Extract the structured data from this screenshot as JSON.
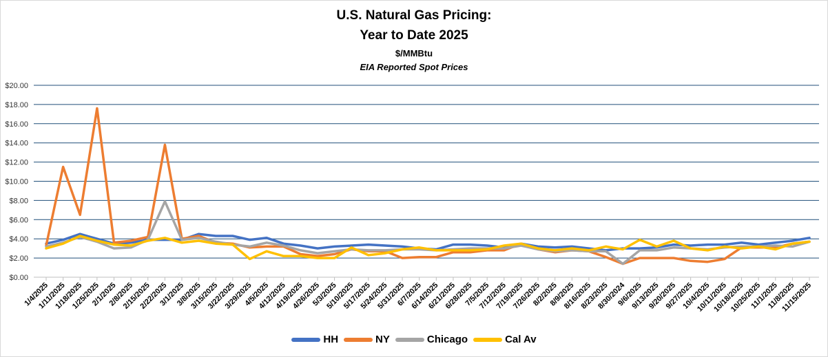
{
  "chart_data": {
    "type": "line",
    "title": "U.S. Natural Gas Pricing:",
    "title_line2": "Year to Date 2025",
    "units": "$/MMBtu",
    "subtitle": "EIA Reported Spot Prices",
    "xlabel": "",
    "ylabel": "",
    "ylim": [
      0,
      20
    ],
    "yticks": [
      "$0.00",
      "$2.00",
      "$4.00",
      "$6.00",
      "$8.00",
      "$10.00",
      "$12.00",
      "$14.00",
      "$16.00",
      "$18.00",
      "$20.00"
    ],
    "grid": true,
    "legend_position": "bottom",
    "categories": [
      "1/4/2025",
      "1/11/2025",
      "1/18/2025",
      "1/25/2025",
      "2/1/2025",
      "2/8/2025",
      "2/15/2025",
      "2/22/2025",
      "3/1/2025",
      "3/8/2025",
      "3/15/2025",
      "3/22/2025",
      "3/29/2025",
      "4/5/2025",
      "4/12/2025",
      "4/19/2025",
      "4/26/2025",
      "5/3/2025",
      "5/10/2025",
      "5/17/2025",
      "5/24/2025",
      "5/31/2025",
      "6/7/2025",
      "6/14/2025",
      "6/21/2025",
      "6/28/2025",
      "7/5/2025",
      "7/12/2025",
      "7/19/2025",
      "7/26/2025",
      "8/2/2025",
      "8/9/2025",
      "8/16/2025",
      "8/23/2025",
      "8/30/2024",
      "9/6/2025",
      "9/13/2025",
      "9/20/2025",
      "9/27/2025",
      "10/4/2025",
      "10/11/2025",
      "10/18/2025",
      "10/25/2025",
      "11/1/2025",
      "11/8/2025",
      "11/15/2025"
    ],
    "series": [
      {
        "name": "HH",
        "color": "#4472C4",
        "values": [
          3.5,
          3.9,
          4.5,
          4.0,
          3.5,
          3.6,
          3.9,
          3.9,
          3.9,
          4.5,
          4.3,
          4.3,
          3.9,
          4.1,
          3.5,
          3.3,
          3.0,
          3.2,
          3.3,
          3.4,
          3.3,
          3.2,
          3.0,
          2.9,
          3.4,
          3.4,
          3.3,
          3.1,
          3.5,
          3.2,
          3.1,
          3.2,
          3.0,
          2.8,
          3.0,
          3.0,
          3.1,
          3.4,
          3.3,
          3.4,
          3.4,
          3.6,
          3.4,
          3.6,
          3.8,
          4.1
        ]
      },
      {
        "name": "NY",
        "color": "#ED7D31",
        "values": [
          3.3,
          11.5,
          6.5,
          17.6,
          3.6,
          3.8,
          4.2,
          13.8,
          4.0,
          4.3,
          3.6,
          3.5,
          3.1,
          3.2,
          3.2,
          2.4,
          2.2,
          2.4,
          2.9,
          2.7,
          2.7,
          2.0,
          2.1,
          2.1,
          2.6,
          2.6,
          2.8,
          2.8,
          3.5,
          2.9,
          2.6,
          2.8,
          2.7,
          2.1,
          1.4,
          2.0,
          2.0,
          2.0,
          1.7,
          1.6,
          1.9,
          3.1,
          3.1,
          3.1,
          3.5,
          3.7
        ]
      },
      {
        "name": "Chicago",
        "color": "#A5A5A5",
        "values": [
          3.2,
          3.6,
          4.2,
          3.7,
          3.0,
          3.1,
          3.9,
          7.9,
          3.9,
          4.1,
          3.7,
          3.4,
          3.2,
          3.6,
          3.3,
          2.8,
          2.5,
          2.7,
          2.9,
          2.8,
          2.8,
          2.9,
          2.9,
          2.8,
          2.9,
          3.0,
          3.0,
          3.0,
          3.3,
          2.9,
          2.7,
          2.8,
          2.7,
          2.7,
          1.4,
          2.8,
          2.8,
          3.1,
          3.0,
          2.9,
          3.1,
          3.2,
          3.2,
          3.3,
          3.2,
          3.7
        ]
      },
      {
        "name": "Cal Av",
        "color": "#FFC000",
        "values": [
          3.0,
          3.5,
          4.3,
          3.8,
          3.4,
          3.3,
          3.8,
          4.1,
          3.6,
          3.8,
          3.5,
          3.4,
          1.9,
          2.7,
          2.2,
          2.2,
          2.0,
          2.0,
          3.1,
          2.3,
          2.5,
          2.9,
          3.1,
          2.8,
          2.8,
          2.8,
          2.9,
          3.3,
          3.5,
          3.0,
          2.8,
          3.0,
          2.8,
          3.2,
          2.9,
          3.9,
          3.2,
          3.8,
          3.0,
          2.8,
          3.2,
          3.0,
          3.2,
          2.9,
          3.5,
          3.7
        ]
      }
    ]
  }
}
